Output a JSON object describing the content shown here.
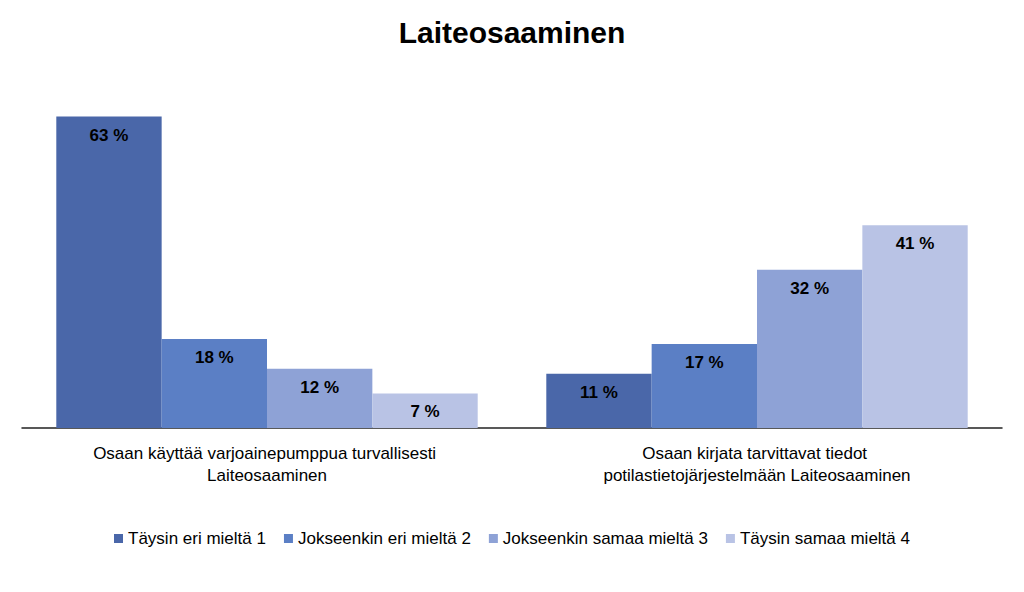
{
  "chart_data": {
    "type": "bar",
    "title": "Laiteosaaminen",
    "categories": [
      "Osaan käyttää varjoainepumppua turvallisesti Laiteosaaminen",
      "Osaan kirjata tarvittavat tiedot potilastietojärjestelmään Laiteosaaminen"
    ],
    "series": [
      {
        "name": "Täysin eri mieltä 1",
        "color": "#4a67a9",
        "values": [
          63,
          11
        ],
        "value_labels": [
          "63 %",
          "11 %"
        ]
      },
      {
        "name": "Jokseenkin eri mieltä 2",
        "color": "#5b7fc5",
        "values": [
          18,
          17
        ],
        "value_labels": [
          "18 %",
          "17 %"
        ]
      },
      {
        "name": "Jokseenkin samaa mieltä 3",
        "color": "#8ea2d6",
        "values": [
          12,
          32
        ],
        "value_labels": [
          "12 %",
          "32 %"
        ]
      },
      {
        "name": "Täysin samaa mieltä 4",
        "color": "#b9c3e5",
        "values": [
          7,
          41
        ],
        "value_labels": [
          "7 %",
          "41 %"
        ]
      }
    ],
    "ylim": [
      0,
      70
    ],
    "grid": false,
    "legend": "bottom",
    "data_labels": true,
    "tick_labels": "x"
  }
}
